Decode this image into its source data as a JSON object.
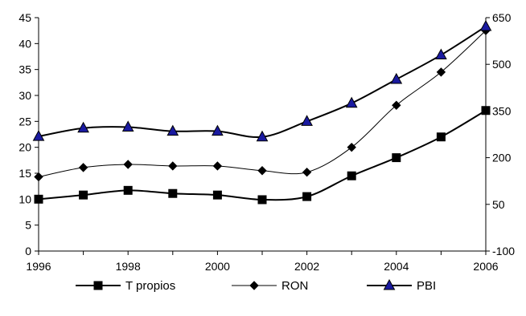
{
  "chart_data": {
    "type": "line",
    "x": [
      1996,
      1997,
      1998,
      1999,
      2000,
      2001,
      2002,
      2003,
      2004,
      2005,
      2006
    ],
    "x_tick_labels": [
      "1996",
      "1998",
      "2000",
      "2002",
      "2004",
      "2006"
    ],
    "xlim": [
      1996,
      2006
    ],
    "y_left": {
      "lim": [
        0,
        45
      ],
      "ticks": [
        "0",
        "5",
        "10",
        "15",
        "20",
        "25",
        "30",
        "35",
        "40",
        "45"
      ]
    },
    "y_right": {
      "lim": [
        -100,
        650
      ],
      "ticks": [
        "-100",
        "50",
        "200",
        "350",
        "500",
        "650"
      ]
    },
    "series": [
      {
        "name": "T propios",
        "axis": "left",
        "marker": "square",
        "values": [
          10.0,
          10.8,
          11.7,
          11.1,
          10.8,
          9.9,
          10.5,
          14.5,
          18.0,
          22.0,
          27.1
        ]
      },
      {
        "name": "RON",
        "axis": "left",
        "marker": "diamond",
        "values": [
          14.3,
          16.1,
          16.7,
          16.4,
          16.4,
          15.5,
          15.2,
          20.0,
          28.1,
          34.5,
          42.5
        ]
      },
      {
        "name": "PBI",
        "axis": "left",
        "marker": "triangle",
        "marker_color": "#1a1aa0",
        "values": [
          22.1,
          23.7,
          23.9,
          23.1,
          23.1,
          22.0,
          25.0,
          28.5,
          33.1,
          37.8,
          43.3
        ]
      }
    ],
    "grid": false,
    "legend_position": "bottom",
    "title": "",
    "xlabel": "",
    "ylabel": ""
  }
}
